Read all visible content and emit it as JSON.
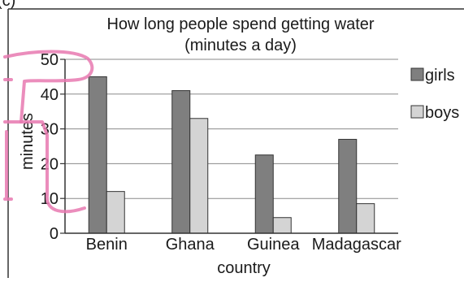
{
  "corner_label": "(c)",
  "chart_data": {
    "type": "bar",
    "title_line1": "How long people spend getting water",
    "title_line2": "(minutes a day)",
    "xlabel": "country",
    "ylabel": "minutes",
    "categories": [
      "Benin",
      "Ghana",
      "Guinea",
      "Madagascar"
    ],
    "series": [
      {
        "name": "girls",
        "color": "#7f7f7f",
        "values": [
          45,
          41,
          22.5,
          27
        ]
      },
      {
        "name": "boys",
        "color": "#d4d4d4",
        "values": [
          12,
          33,
          4.5,
          8.5
        ]
      }
    ],
    "ylim": [
      0,
      50
    ],
    "yticks": [
      0,
      10,
      20,
      30,
      40,
      50
    ],
    "grid": true,
    "legend_position": "right",
    "annotation_color": "#e879b0"
  }
}
